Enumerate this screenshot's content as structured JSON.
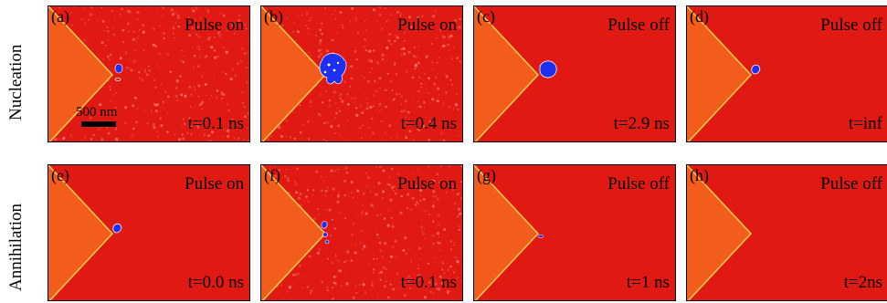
{
  "rows": [
    {
      "label": "Nucleation"
    },
    {
      "label": "Annihilation"
    }
  ],
  "scale_bar": "500 nm",
  "colors": {
    "background": "#e01a12",
    "tip": "#f35d1c",
    "tip_edge": "#f7c84a",
    "skyrmion": "#1d2ff0"
  },
  "panels": [
    {
      "label": "(a)",
      "pulse": "Pulse on",
      "time": "t=0.1 ns",
      "state": "noisy",
      "skyrmion": "small"
    },
    {
      "label": "(b)",
      "pulse": "Pulse on",
      "time": "t=0.4 ns",
      "state": "noisy",
      "skyrmion": "cluster"
    },
    {
      "label": "(c)",
      "pulse": "Pulse off",
      "time": "t=2.9 ns",
      "state": "clean",
      "skyrmion": "large"
    },
    {
      "label": "(d)",
      "pulse": "Pulse off",
      "time": "t=inf",
      "state": "clean",
      "skyrmion": "medium"
    },
    {
      "label": "(e)",
      "pulse": "Pulse on",
      "time": "t=0.0 ns",
      "state": "clean",
      "skyrmion": "medium"
    },
    {
      "label": "(f)",
      "pulse": "Pulse on",
      "time": "t=0.1 ns",
      "state": "noisy",
      "skyrmion": "fragmented"
    },
    {
      "label": "(g)",
      "pulse": "Pulse off",
      "time": "t=1 ns",
      "state": "clean",
      "skyrmion": "tiny"
    },
    {
      "label": "(h)",
      "pulse": "Pulse off",
      "time": "t=2ns",
      "state": "clean",
      "skyrmion": "none"
    }
  ]
}
